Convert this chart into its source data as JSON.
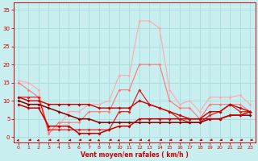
{
  "bg_color": "#c8eef0",
  "grid_color": "#aadddd",
  "x_ticks": [
    0,
    1,
    2,
    3,
    4,
    5,
    6,
    7,
    8,
    9,
    10,
    11,
    12,
    13,
    14,
    15,
    16,
    17,
    18,
    19,
    20,
    21,
    22,
    23
  ],
  "y_ticks": [
    0,
    5,
    10,
    15,
    20,
    25,
    30,
    35
  ],
  "xlabel": "Vent moyen/en rafales ( km/h )",
  "xlabel_color": "#cc0000",
  "tick_color": "#cc0000",
  "lines": [
    {
      "color": "#ffaaaa",
      "linewidth": 0.8,
      "marker": "D",
      "markersize": 1.8,
      "data_y": [
        15.5,
        15,
        13,
        1,
        3,
        7,
        7,
        9,
        9,
        10,
        17,
        17,
        32,
        32,
        30,
        13,
        9,
        10,
        7,
        11,
        11,
        11,
        11.5,
        9
      ]
    },
    {
      "color": "#ff7777",
      "linewidth": 0.8,
      "marker": "D",
      "markersize": 1.8,
      "data_y": [
        15,
        13,
        11,
        1,
        4,
        4,
        4,
        7,
        7,
        7,
        13,
        13,
        20,
        20,
        20,
        10,
        8,
        8,
        5,
        9,
        9,
        9,
        9,
        7
      ]
    },
    {
      "color": "#dd2222",
      "linewidth": 0.9,
      "marker": "D",
      "markersize": 2.0,
      "data_y": [
        11,
        11,
        11,
        2,
        2,
        2,
        2,
        2,
        2,
        2,
        7,
        7,
        13,
        9,
        8,
        7,
        5,
        4,
        4,
        6,
        7,
        9,
        7,
        7
      ]
    },
    {
      "color": "#cc0000",
      "linewidth": 1.0,
      "marker": "D",
      "markersize": 2.0,
      "data_y": [
        11,
        10,
        10,
        9,
        9,
        9,
        9,
        9,
        8,
        8,
        8,
        8,
        10,
        9,
        8,
        7,
        6,
        5,
        5,
        7,
        7,
        9,
        8,
        7
      ]
    },
    {
      "color": "#880000",
      "linewidth": 1.1,
      "marker": "D",
      "markersize": 2.0,
      "data_y": [
        10,
        9,
        9,
        8,
        7,
        6,
        5,
        5,
        4,
        4,
        4,
        4,
        4,
        4,
        4,
        4,
        4,
        4,
        4,
        5,
        5,
        6,
        6,
        6
      ]
    },
    {
      "color": "#cc0000",
      "linewidth": 1.1,
      "marker": "D",
      "markersize": 2.0,
      "data_y": [
        9,
        8,
        8,
        3,
        3,
        3,
        1,
        1,
        1,
        2,
        3,
        3,
        5,
        5,
        5,
        5,
        5,
        5,
        5,
        5,
        5,
        6,
        6,
        7
      ]
    }
  ],
  "arrow_angles": [
    220,
    215,
    225,
    210,
    220,
    200,
    215,
    205,
    225,
    215,
    220,
    210,
    215,
    220,
    215,
    210,
    205,
    215,
    210,
    215,
    210,
    215,
    210,
    215
  ],
  "arrow_color": "#cc0000",
  "ylim": [
    -1.5,
    37
  ],
  "xlim": [
    -0.5,
    23.5
  ]
}
